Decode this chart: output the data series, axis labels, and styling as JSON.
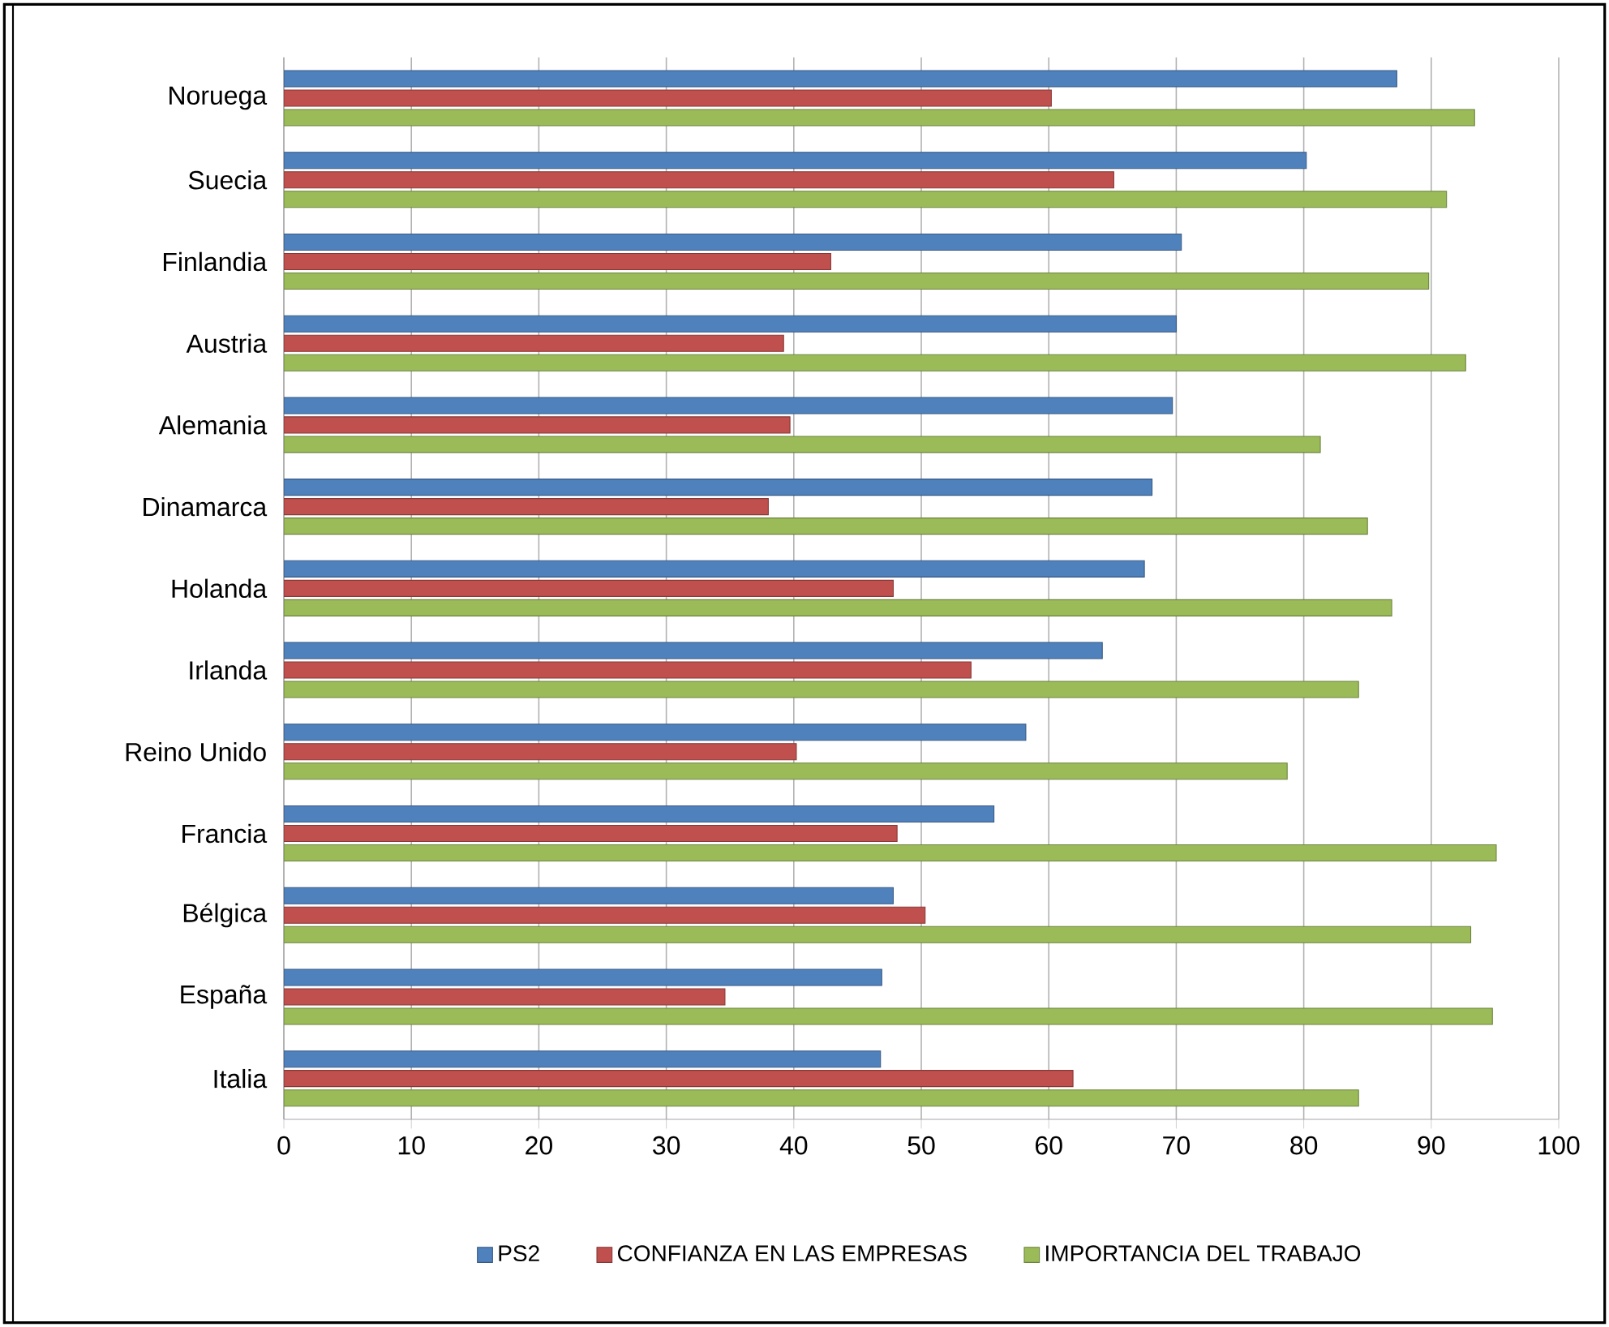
{
  "chart_data": {
    "type": "bar",
    "orientation": "horizontal",
    "categories": [
      "Noruega",
      "Suecia",
      "Finlandia",
      "Austria",
      "Alemania",
      "Dinamarca",
      "Holanda",
      "Irlanda",
      "Reino Unido",
      "Francia",
      "Bélgica",
      "España",
      "Italia"
    ],
    "series": [
      {
        "name": "PS2",
        "color": "#4f81bd",
        "values": [
          87.3,
          80.2,
          70.4,
          70.0,
          69.7,
          68.1,
          67.5,
          64.2,
          58.2,
          55.7,
          47.8,
          46.9,
          46.8
        ]
      },
      {
        "name": "CONFIANZA EN LAS EMPRESAS",
        "color": "#c0504d",
        "values": [
          60.2,
          65.1,
          42.9,
          39.2,
          39.7,
          38.0,
          47.8,
          53.9,
          40.2,
          48.1,
          50.3,
          34.6,
          61.9
        ]
      },
      {
        "name": "IMPORTANCIA DEL TRABAJO",
        "color": "#9bbb59",
        "values": [
          93.4,
          91.2,
          89.8,
          92.7,
          81.3,
          85.0,
          86.9,
          84.3,
          78.7,
          95.1,
          93.1,
          94.8,
          84.3
        ]
      }
    ],
    "xlim": [
      0,
      100
    ],
    "xticks": [
      0,
      10,
      20,
      30,
      40,
      50,
      60,
      70,
      80,
      90,
      100
    ],
    "grid": "x",
    "legend": "bottom"
  }
}
